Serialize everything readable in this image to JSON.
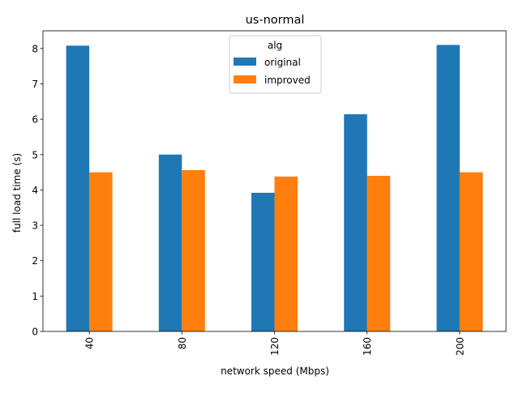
{
  "chart_data": {
    "type": "bar",
    "title": "us-normal",
    "xlabel": "network speed (Mbps)",
    "ylabel": "full load time (s)",
    "categories": [
      "40",
      "80",
      "120",
      "160",
      "200"
    ],
    "series": [
      {
        "name": "original",
        "color": "#1f77b4",
        "values": [
          8.08,
          5.0,
          3.92,
          6.14,
          8.1
        ]
      },
      {
        "name": "improved",
        "color": "#ff7f0e",
        "values": [
          4.5,
          4.56,
          4.38,
          4.4,
          4.5
        ]
      }
    ],
    "ylim": [
      0,
      8.5
    ],
    "yticks": [
      "0",
      "1",
      "2",
      "3",
      "4",
      "5",
      "6",
      "7",
      "8"
    ],
    "legend": {
      "title": "alg",
      "position": "top-center"
    },
    "grid": false
  }
}
